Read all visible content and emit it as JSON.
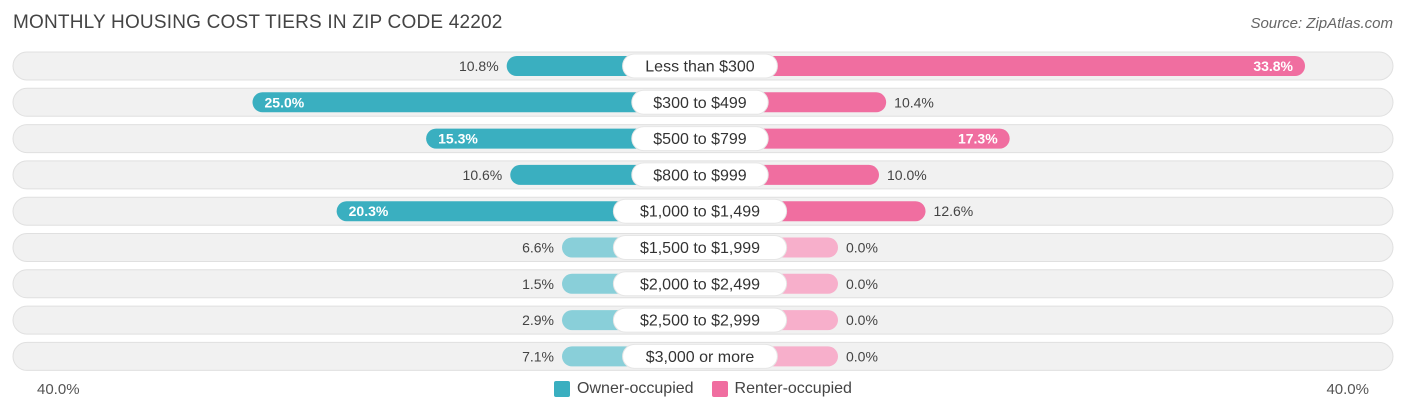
{
  "header": {
    "title": "MONTHLY HOUSING COST TIERS IN ZIP CODE 42202",
    "source": "Source: ZipAtlas.com"
  },
  "axis": {
    "left_label": "40.0%",
    "right_label": "40.0%"
  },
  "legend": [
    {
      "label": "Owner-occupied",
      "color": "#3aafc0"
    },
    {
      "label": "Renter-occupied",
      "color": "#f06ea0"
    }
  ],
  "chart_data": {
    "type": "bar",
    "title": "MONTHLY HOUSING COST TIERS IN ZIP CODE 42202",
    "orientation": "horizontal-diverging",
    "xlim": [
      -40,
      40
    ],
    "categories": [
      "Less than $300",
      "$300 to $499",
      "$500 to $799",
      "$800 to $999",
      "$1,000 to $1,499",
      "$1,500 to $1,999",
      "$2,000 to $2,499",
      "$2,500 to $2,999",
      "$3,000 or more"
    ],
    "series": [
      {
        "name": "Owner-occupied",
        "color": "#3aafc0",
        "values": [
          10.8,
          25.0,
          15.3,
          10.6,
          20.3,
          6.6,
          1.5,
          2.9,
          7.1
        ],
        "labels": [
          "10.8%",
          "25.0%",
          "15.3%",
          "10.6%",
          "20.3%",
          "6.6%",
          "1.5%",
          "2.9%",
          "7.1%"
        ]
      },
      {
        "name": "Renter-occupied",
        "color": "#f06ea0",
        "values": [
          33.8,
          10.4,
          17.3,
          10.0,
          12.6,
          0.0,
          0.0,
          0.0,
          0.0
        ],
        "labels": [
          "33.8%",
          "10.4%",
          "17.3%",
          "10.0%",
          "12.6%",
          "0.0%",
          "0.0%",
          "0.0%",
          "0.0%"
        ]
      }
    ]
  }
}
